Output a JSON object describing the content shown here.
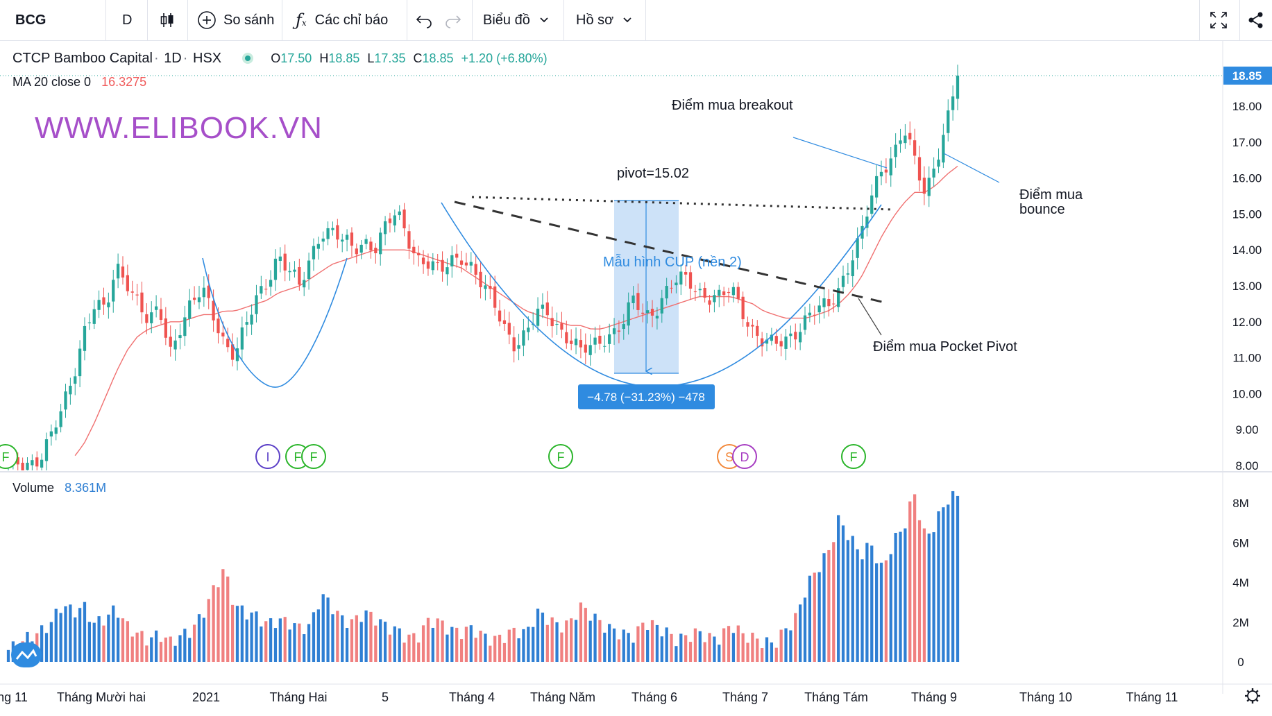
{
  "toolbar": {
    "symbol": "BCG",
    "interval": "D",
    "compare_label": "So sánh",
    "indicators_label": "Các chỉ báo",
    "chart_type_label": "Biểu đồ",
    "profile_label": "Hồ sơ"
  },
  "legend": {
    "name": "CTCP Bamboo Capital",
    "interval": "1D",
    "exchange": "HSX",
    "open_label": "O",
    "open": "17.50",
    "high_label": "H",
    "high": "18.85",
    "low_label": "L",
    "low": "17.35",
    "close_label": "C",
    "close": "18.85",
    "change": "+1.20 (+6.80%)",
    "ma_label": "MA 20 close 0",
    "ma_value": "16.3275",
    "volume_label": "Volume",
    "volume_value": "8.361M"
  },
  "watermark": "WWW.ELIBOOK.VN",
  "colors": {
    "up": "#26a69a",
    "down": "#ef5350",
    "volume_up": "#2f7fd3",
    "volume_down": "#f08080",
    "ma": "#f07070",
    "cup": "#2f8be0",
    "watermark": "#a64fc9",
    "price_tag": "#2f8be0"
  },
  "chart_data": {
    "type": "candlestick",
    "title": "",
    "price_axis": {
      "ticks": [
        "8.00",
        "9.00",
        "10.00",
        "11.00",
        "12.00",
        "13.00",
        "14.00",
        "15.00",
        "16.00",
        "17.00",
        "18.00"
      ],
      "ylim": [
        7.9,
        19.2
      ],
      "last_price": "18.85"
    },
    "volume_axis": {
      "ticks": [
        "0",
        "2M",
        "4M",
        "6M",
        "8M"
      ],
      "ylim": [
        0,
        9
      ]
    },
    "x_ticks": [
      "ng 11",
      "Tháng Mười hai",
      "2021",
      "Tháng Hai",
      "5",
      "Tháng 4",
      "Tháng Năm",
      "Tháng 6",
      "Tháng 7",
      "Tháng Tám",
      "Tháng 9",
      "Tháng 10",
      "Tháng 11"
    ],
    "close_path": [
      8.0,
      8.0,
      8.1,
      8.3,
      8.8,
      9.5,
      10.5,
      11.8,
      12.5,
      12.2,
      13.5,
      13.2,
      12.6,
      11.9,
      12.3,
      11.2,
      12.0,
      12.5,
      12.8,
      12.2,
      11.5,
      11.1,
      11.8,
      12.6,
      13.2,
      13.9,
      13.4,
      12.9,
      13.8,
      14.6,
      14.5,
      14.2,
      14.0,
      14.3,
      14.1,
      14.6,
      15.0,
      14.4,
      13.8,
      13.6,
      13.3,
      13.7,
      13.9,
      13.5,
      12.9,
      12.5,
      11.9,
      11.4,
      11.6,
      12.2,
      12.3,
      11.9,
      11.5,
      11.1,
      11.3,
      11.6,
      11.7,
      11.9,
      12.6,
      12.2,
      12.4,
      12.8,
      13.1,
      13.2,
      12.9,
      12.7,
      12.6,
      12.9,
      12.4,
      11.8,
      11.4,
      11.3,
      11.5,
      11.8,
      12.1,
      12.3,
      12.4,
      13.0,
      13.7,
      14.3,
      15.4,
      16.3,
      16.7,
      17.4,
      16.4,
      15.5,
      16.6,
      17.6,
      18.85
    ],
    "volume_path": [
      0.6,
      0.9,
      1.3,
      1.5,
      2.0,
      2.9,
      2.5,
      2.8,
      1.9,
      2.2,
      2.7,
      1.8,
      1.4,
      1.1,
      1.4,
      1.0,
      1.3,
      1.6,
      2.4,
      3.6,
      4.7,
      2.8,
      2.5,
      2.3,
      1.9,
      2.1,
      2.0,
      1.7,
      1.8,
      3.4,
      2.8,
      2.1,
      2.0,
      2.5,
      2.2,
      1.8,
      1.6,
      1.2,
      1.3,
      2.1,
      2.0,
      1.6,
      1.5,
      1.7,
      1.3,
      1.1,
      1.3,
      1.6,
      1.4,
      2.5,
      2.2,
      1.8,
      1.9,
      2.8,
      2.4,
      1.9,
      1.6,
      1.4,
      1.3,
      2.0,
      1.8,
      1.5,
      1.1,
      1.3,
      1.5,
      1.2,
      1.2,
      1.9,
      1.4,
      1.2,
      1.0,
      0.9,
      1.6,
      2.2,
      3.8,
      4.7,
      5.5,
      7.2,
      6.3,
      5.4,
      5.9,
      4.6,
      6.0,
      6.8,
      8.5,
      6.2,
      7.0,
      8.2,
      8.36
    ],
    "ma_path": [
      null,
      null,
      null,
      null,
      null,
      null,
      8.2,
      8.6,
      9.2,
      9.9,
      10.6,
      11.2,
      11.6,
      11.8,
      11.9,
      12.0,
      12.0,
      12.1,
      12.2,
      12.2,
      12.3,
      12.3,
      12.4,
      12.5,
      12.6,
      12.8,
      12.9,
      13.0,
      13.2,
      13.4,
      13.6,
      13.7,
      13.8,
      13.9,
      14.0,
      14.0,
      14.0,
      14.0,
      13.9,
      13.8,
      13.7,
      13.6,
      13.5,
      13.3,
      13.1,
      12.9,
      12.7,
      12.5,
      12.3,
      12.2,
      12.1,
      12.0,
      11.9,
      11.9,
      11.8,
      11.8,
      11.9,
      12.0,
      12.1,
      12.2,
      12.3,
      12.4,
      12.5,
      12.6,
      12.7,
      12.7,
      12.7,
      12.7,
      12.6,
      12.5,
      12.3,
      12.2,
      12.1,
      12.1,
      12.1,
      12.2,
      12.3,
      12.5,
      12.8,
      13.2,
      13.8,
      14.4,
      14.9,
      15.3,
      15.6,
      15.6,
      15.8,
      16.1,
      16.33
    ],
    "markers": [
      {
        "label": "F",
        "color": "#2ab52a"
      },
      {
        "label": "I",
        "color": "#5b3fc7"
      },
      {
        "label": "F",
        "color": "#2ab52a"
      },
      {
        "label": "F",
        "color": "#2ab52a"
      },
      {
        "label": "F",
        "color": "#2ab52a"
      },
      {
        "label": "S",
        "color": "#f2883a"
      },
      {
        "label": "D",
        "color": "#a63cc2"
      },
      {
        "label": "F",
        "color": "#2ab52a"
      }
    ],
    "annotations": {
      "breakout": "Điểm mua breakout",
      "bounce_line1": "Điểm mua",
      "bounce_line2": "bounce",
      "pivot": "pivot=15.02",
      "cup": "Mẫu hình CUP (nền 2)",
      "pocket_pivot": "Điểm mua Pocket Pivot",
      "measure": "−4.78 (−31.23%) −478"
    }
  }
}
